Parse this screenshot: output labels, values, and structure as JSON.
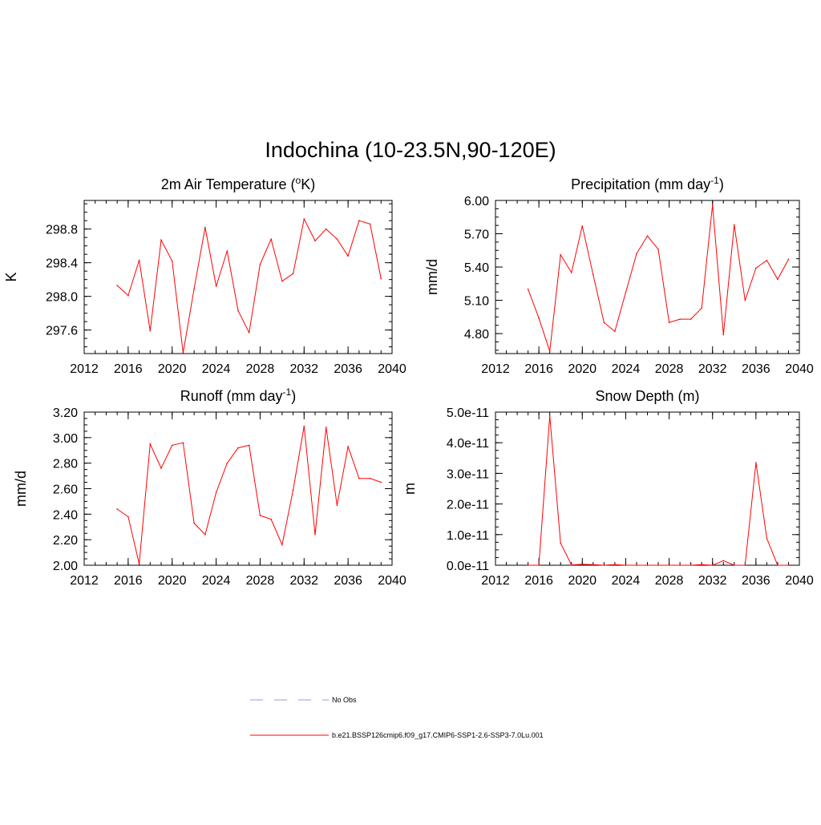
{
  "figure": {
    "title": "Indochina (10-23.5N,90-120E)"
  },
  "colors": {
    "series": "#ff0000",
    "obs": "#9999dd",
    "axis": "#000000"
  },
  "legend": {
    "placement": "bottom-center",
    "entries": [
      {
        "label": "No Obs",
        "style": "dashed",
        "color": "#9999dd"
      },
      {
        "label": "b.e21.BSSP126cmip6.f09_g17.CMIP6-SSP1-2.6-SSP3-7.0Lu.001",
        "style": "solid",
        "color": "#ff0000"
      }
    ]
  },
  "chart_data": [
    {
      "type": "line",
      "title_main": "2m Air Temperature (",
      "title_sup": "o",
      "title_tail": "K)",
      "ylabel": "K",
      "xlim": [
        2012,
        2040
      ],
      "ylim": [
        297.32,
        299.14
      ],
      "xticks": [
        2012,
        2016,
        2020,
        2024,
        2028,
        2032,
        2036,
        2040
      ],
      "xtick_labels": [
        "2012",
        "2016",
        "2020",
        "2024",
        "2028",
        "2032",
        "2036",
        "2040"
      ],
      "yticks": [
        297.6,
        298.0,
        298.4,
        298.8
      ],
      "ytick_labels": [
        "297.6",
        "298.0",
        "298.4",
        "298.8"
      ],
      "series": [
        {
          "x": [
            2015,
            2016,
            2017,
            2018,
            2019,
            2020,
            2021,
            2022,
            2023,
            2024,
            2025,
            2026,
            2027,
            2028,
            2029,
            2030,
            2031,
            2032,
            2033,
            2034,
            2035,
            2036,
            2037,
            2038,
            2039
          ],
          "y": [
            298.13,
            298.01,
            298.43,
            297.59,
            298.67,
            298.42,
            297.33,
            298.09,
            298.82,
            298.12,
            298.54,
            297.83,
            297.57,
            298.38,
            298.68,
            298.18,
            298.27,
            298.92,
            298.66,
            298.8,
            298.68,
            298.48,
            298.9,
            298.86,
            298.21
          ]
        }
      ]
    },
    {
      "type": "line",
      "title_main": "Precipitation (mm day",
      "title_sup": "-1",
      "title_tail": ")",
      "ylabel": "mm/d",
      "xlim": [
        2012,
        2040
      ],
      "ylim": [
        4.62,
        6.0
      ],
      "xticks": [
        2012,
        2016,
        2020,
        2024,
        2028,
        2032,
        2036,
        2040
      ],
      "xtick_labels": [
        "2012",
        "2016",
        "2020",
        "2024",
        "2028",
        "2032",
        "2036",
        "2040"
      ],
      "yticks": [
        4.8,
        5.1,
        5.4,
        5.7,
        6.0
      ],
      "ytick_labels": [
        "4.80",
        "5.10",
        "5.40",
        "5.70",
        "6.00"
      ],
      "series": [
        {
          "x": [
            2015,
            2016,
            2017,
            2018,
            2019,
            2020,
            2021,
            2022,
            2023,
            2024,
            2025,
            2026,
            2027,
            2028,
            2029,
            2030,
            2031,
            2032,
            2033,
            2034,
            2035,
            2036,
            2037,
            2038,
            2039
          ],
          "y": [
            5.2,
            4.94,
            4.64,
            5.51,
            5.35,
            5.77,
            5.33,
            4.9,
            4.82,
            5.17,
            5.52,
            5.68,
            5.56,
            4.9,
            4.93,
            4.93,
            5.03,
            5.96,
            4.79,
            5.78,
            5.1,
            5.39,
            5.46,
            5.29,
            5.47
          ]
        }
      ]
    },
    {
      "type": "line",
      "title_main": "Runoff (mm day",
      "title_sup": "-1",
      "title_tail": ")",
      "ylabel": "mm/d",
      "xlim": [
        2012,
        2040
      ],
      "ylim": [
        2.0,
        3.2
      ],
      "xticks": [
        2012,
        2016,
        2020,
        2024,
        2028,
        2032,
        2036,
        2040
      ],
      "xtick_labels": [
        "2012",
        "2016",
        "2020",
        "2024",
        "2028",
        "2032",
        "2036",
        "2040"
      ],
      "yticks": [
        2.0,
        2.2,
        2.4,
        2.6,
        2.8,
        3.0,
        3.2
      ],
      "ytick_labels": [
        "2.00",
        "2.20",
        "2.40",
        "2.60",
        "2.80",
        "3.00",
        "3.20"
      ],
      "series": [
        {
          "x": [
            2015,
            2016,
            2017,
            2018,
            2019,
            2020,
            2021,
            2022,
            2023,
            2024,
            2025,
            2026,
            2027,
            2028,
            2029,
            2030,
            2031,
            2032,
            2033,
            2034,
            2035,
            2036,
            2037,
            2038,
            2039
          ],
          "y": [
            2.44,
            2.38,
            2.01,
            2.95,
            2.76,
            2.94,
            2.96,
            2.33,
            2.24,
            2.57,
            2.8,
            2.92,
            2.94,
            2.39,
            2.36,
            2.16,
            2.59,
            3.09,
            2.24,
            3.08,
            2.47,
            2.93,
            2.68,
            2.68,
            2.65
          ]
        }
      ]
    },
    {
      "type": "line",
      "title_main": "Snow Depth (m)",
      "title_sup": "",
      "title_tail": "",
      "ylabel": "m",
      "xlim": [
        2012,
        2040
      ],
      "ylim": [
        0,
        5e-11
      ],
      "xticks": [
        2012,
        2016,
        2020,
        2024,
        2028,
        2032,
        2036,
        2040
      ],
      "xtick_labels": [
        "2012",
        "2016",
        "2020",
        "2024",
        "2028",
        "2032",
        "2036",
        "2040"
      ],
      "yticks": [
        0,
        1e-11,
        2e-11,
        3e-11,
        4e-11,
        5e-11
      ],
      "ytick_labels": [
        "0.0e-11",
        "1.0e-11",
        "2.0e-11",
        "3.0e-11",
        "4.0e-11",
        "5.0e-11"
      ],
      "series": [
        {
          "x": [
            2015,
            2016,
            2017,
            2018,
            2019,
            2020,
            2021,
            2022,
            2023,
            2024,
            2025,
            2026,
            2027,
            2028,
            2029,
            2030,
            2031,
            2032,
            2033,
            2034,
            2035,
            2036,
            2037,
            2038,
            2039
          ],
          "y": [
            0,
            0,
            4.88e-11,
            7.2e-12,
            1e-13,
            3e-13,
            2e-13,
            0,
            2e-13,
            0,
            0,
            0,
            0,
            0,
            0,
            0,
            2e-13,
            0,
            1.5e-12,
            0,
            0,
            3.35e-11,
            8.8e-12,
            0,
            0
          ]
        }
      ]
    }
  ]
}
